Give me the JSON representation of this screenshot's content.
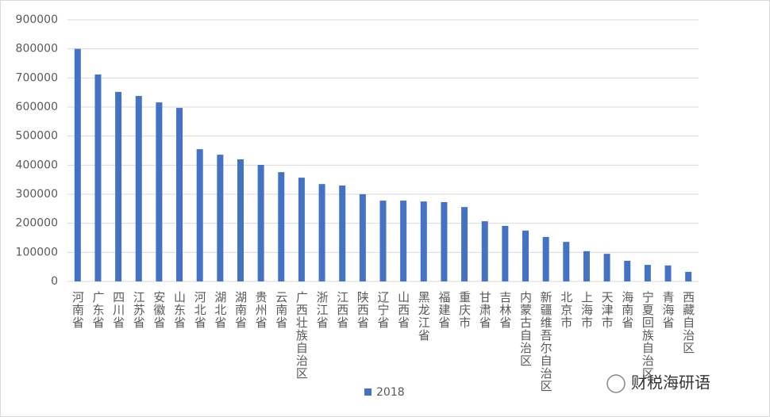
{
  "chart_data": {
    "type": "bar",
    "categories": [
      "河南省",
      "广东省",
      "四川省",
      "江苏省",
      "安徽省",
      "山东省",
      "河北省",
      "湖北省",
      "湖南省",
      "贵州省",
      "云南省",
      "广西壮族自治区",
      "浙江省",
      "江西省",
      "陕西省",
      "辽宁省",
      "山西省",
      "黑龙江省",
      "福建省",
      "重庆市",
      "甘肃省",
      "吉林省",
      "内蒙古自治区",
      "新疆维吾尔自治区",
      "北京市",
      "上海市",
      "天津市",
      "海南省",
      "宁夏回族自治区",
      "青海省",
      "西藏自治区"
    ],
    "series": [
      {
        "name": "2018",
        "color": "#4472c4",
        "values": [
          800000,
          712000,
          652000,
          638000,
          616000,
          597000,
          455000,
          436000,
          420000,
          401000,
          376000,
          357000,
          335000,
          330000,
          300000,
          278000,
          278000,
          275000,
          273000,
          256000,
          207000,
          191000,
          175000,
          153000,
          136000,
          104000,
          95000,
          71000,
          57000,
          55000,
          33000
        ]
      }
    ],
    "ylim": [
      0,
      900000
    ],
    "yticks": [
      0,
      100000,
      200000,
      300000,
      400000,
      500000,
      600000,
      700000,
      800000,
      900000
    ],
    "grid": true,
    "legend": "bottom",
    "watermark": "财税海研语"
  }
}
